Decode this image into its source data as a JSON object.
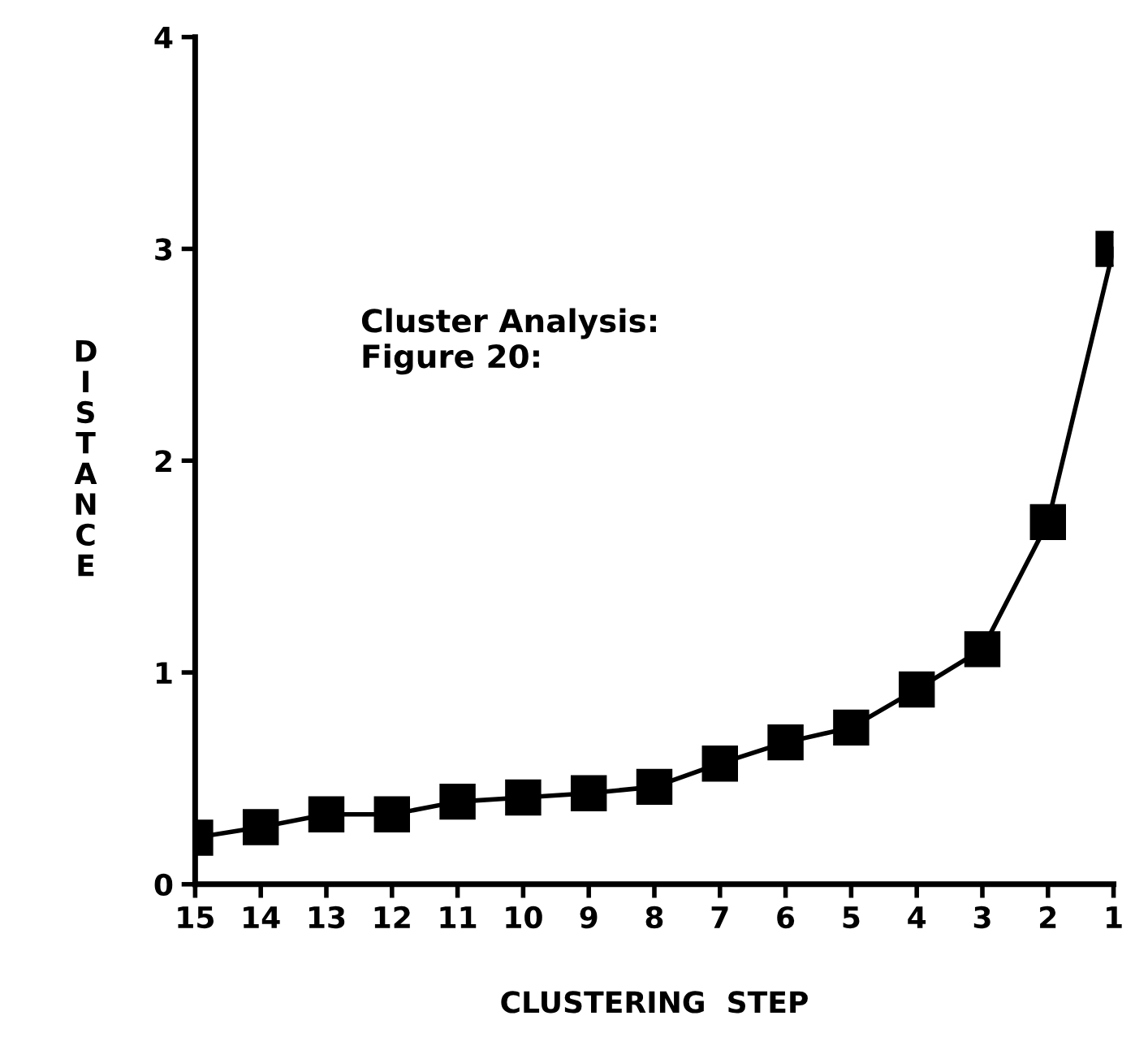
{
  "chart_data": {
    "type": "line",
    "xlabel": "CLUSTERING  STEP",
    "ylabel": "DISTANCE",
    "annotations": [
      "Cluster Analysis:\nFigure 20:"
    ],
    "x": [
      15,
      14,
      13,
      12,
      11,
      10,
      9,
      8,
      7,
      6,
      5,
      4,
      3,
      2,
      1
    ],
    "series": [
      {
        "color": "#000000",
        "values": [
          0.22,
          0.27,
          0.33,
          0.33,
          0.39,
          0.41,
          0.43,
          0.46,
          0.57,
          0.67,
          0.74,
          0.92,
          1.11,
          1.71,
          3.0
        ]
      }
    ],
    "xlim": [
      15,
      1
    ],
    "xticks": [
      15,
      14,
      13,
      12,
      11,
      10,
      9,
      8,
      7,
      6,
      5,
      4,
      3,
      2,
      1
    ],
    "ylim": [
      0,
      4
    ],
    "yticks": [
      0,
      1,
      2,
      3,
      4
    ],
    "marker": "square",
    "line_style": "solid",
    "grid": false,
    "legend": false
  }
}
